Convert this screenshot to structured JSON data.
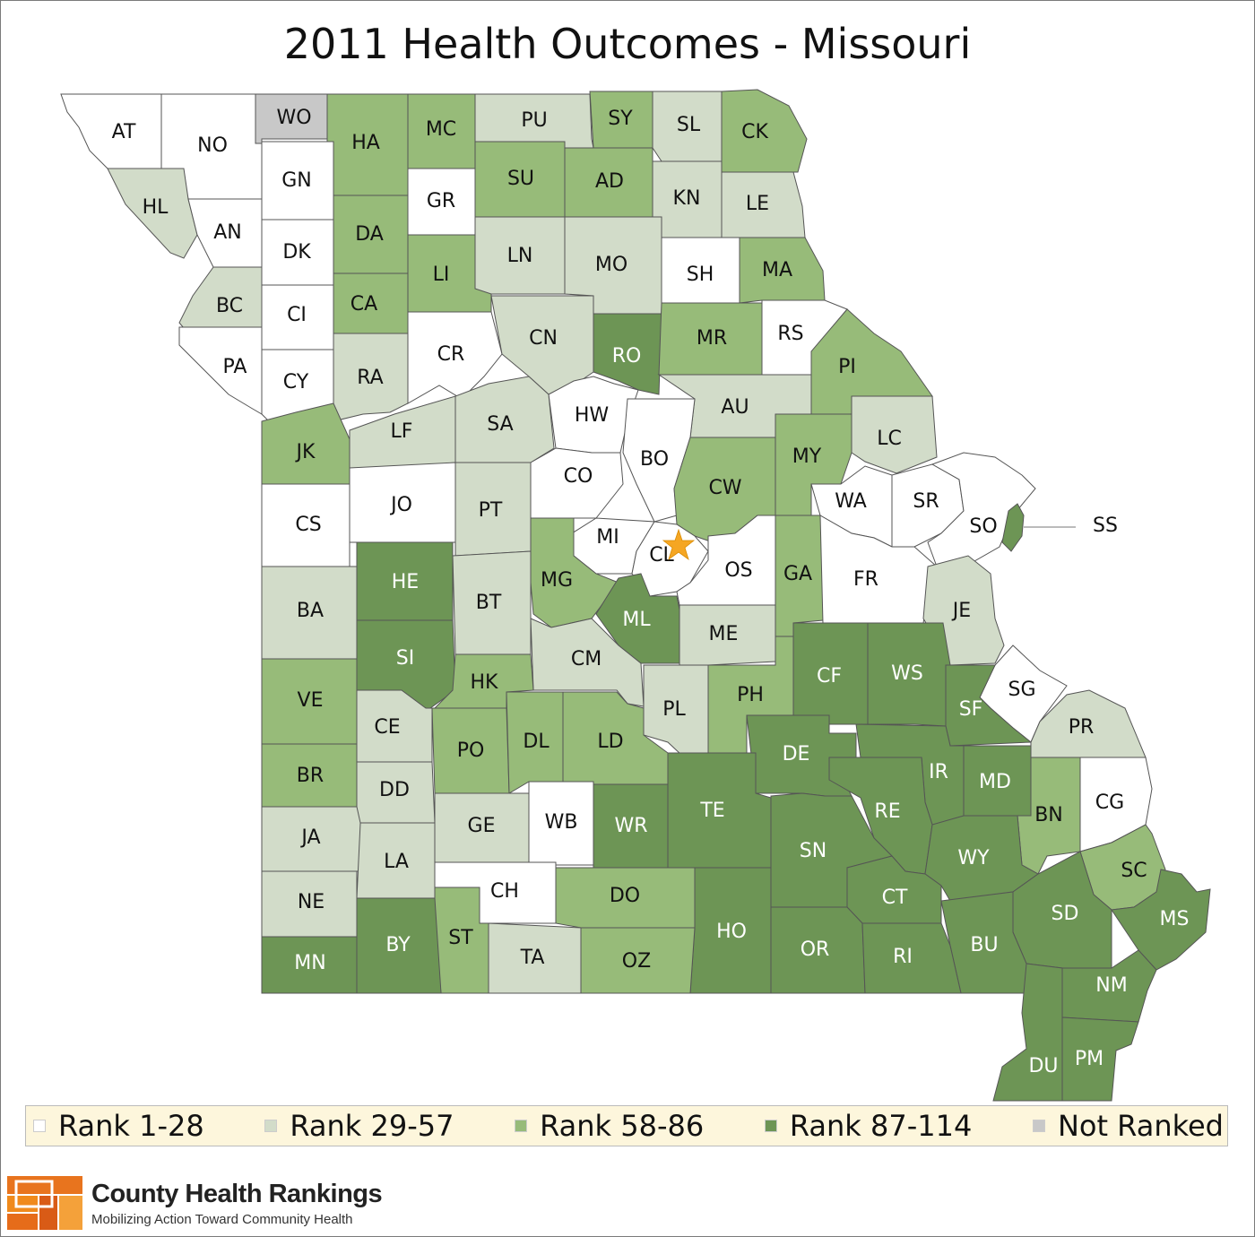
{
  "title": "2011 Health Outcomes - Missouri",
  "colors": {
    "rank1": "#ffffff",
    "rank2": "#d2dcc9",
    "rank3": "#97bb79",
    "rank4": "#6d9555",
    "notranked": "#c8c8c8",
    "star": "#f5a623"
  },
  "legend": [
    {
      "label": "Rank 1-28",
      "color": "#ffffff"
    },
    {
      "label": "Rank 29-57",
      "color": "#d2dcc9"
    },
    {
      "label": "Rank 58-86",
      "color": "#97bb79"
    },
    {
      "label": "Rank 87-114",
      "color": "#6d9555"
    },
    {
      "label": "Not Ranked",
      "color": "#c8c8c8"
    }
  ],
  "counties": [
    {
      "id": "AT",
      "cls": 1
    },
    {
      "id": "NO",
      "cls": 1
    },
    {
      "id": "WO",
      "cls": 0
    },
    {
      "id": "HA",
      "cls": 3
    },
    {
      "id": "MC",
      "cls": 3
    },
    {
      "id": "PU",
      "cls": 2
    },
    {
      "id": "SY",
      "cls": 3
    },
    {
      "id": "SL",
      "cls": 2
    },
    {
      "id": "CK",
      "cls": 3
    },
    {
      "id": "HL",
      "cls": 2
    },
    {
      "id": "AN",
      "cls": 1
    },
    {
      "id": "GN",
      "cls": 1
    },
    {
      "id": "GR",
      "cls": 1
    },
    {
      "id": "SU",
      "cls": 3
    },
    {
      "id": "AD",
      "cls": 3
    },
    {
      "id": "KN",
      "cls": 2
    },
    {
      "id": "LE",
      "cls": 2
    },
    {
      "id": "DA",
      "cls": 3
    },
    {
      "id": "DK",
      "cls": 1
    },
    {
      "id": "LI",
      "cls": 3
    },
    {
      "id": "LN",
      "cls": 2
    },
    {
      "id": "MO",
      "cls": 2
    },
    {
      "id": "SH",
      "cls": 1
    },
    {
      "id": "MA",
      "cls": 3
    },
    {
      "id": "BC",
      "cls": 2
    },
    {
      "id": "CI",
      "cls": 1
    },
    {
      "id": "CA",
      "cls": 3
    },
    {
      "id": "CR",
      "cls": 1
    },
    {
      "id": "CN",
      "cls": 2
    },
    {
      "id": "RO",
      "cls": 4
    },
    {
      "id": "MR",
      "cls": 3
    },
    {
      "id": "RS",
      "cls": 1
    },
    {
      "id": "PA",
      "cls": 1
    },
    {
      "id": "CY",
      "cls": 1
    },
    {
      "id": "RA",
      "cls": 2
    },
    {
      "id": "PI",
      "cls": 3
    },
    {
      "id": "HW",
      "cls": 1
    },
    {
      "id": "AU",
      "cls": 2
    },
    {
      "id": "JK",
      "cls": 3
    },
    {
      "id": "LF",
      "cls": 2
    },
    {
      "id": "SA",
      "cls": 2
    },
    {
      "id": "BO",
      "cls": 1
    },
    {
      "id": "LC",
      "cls": 2
    },
    {
      "id": "MY",
      "cls": 3
    },
    {
      "id": "CO",
      "cls": 1
    },
    {
      "id": "CW",
      "cls": 3
    },
    {
      "id": "JO",
      "cls": 1
    },
    {
      "id": "PT",
      "cls": 2
    },
    {
      "id": "WA",
      "cls": 1
    },
    {
      "id": "SR",
      "cls": 1
    },
    {
      "id": "CS",
      "cls": 1
    },
    {
      "id": "SO",
      "cls": 1
    },
    {
      "id": "SS",
      "cls": 4
    },
    {
      "id": "MI",
      "cls": 1
    },
    {
      "id": "CL",
      "cls": 1
    },
    {
      "id": "OS",
      "cls": 1
    },
    {
      "id": "HE",
      "cls": 4
    },
    {
      "id": "MG",
      "cls": 3
    },
    {
      "id": "GA",
      "cls": 3
    },
    {
      "id": "FR",
      "cls": 1
    },
    {
      "id": "BA",
      "cls": 2
    },
    {
      "id": "BT",
      "cls": 2
    },
    {
      "id": "ML",
      "cls": 4
    },
    {
      "id": "JE",
      "cls": 2
    },
    {
      "id": "ME",
      "cls": 2
    },
    {
      "id": "SI",
      "cls": 4
    },
    {
      "id": "CM",
      "cls": 2
    },
    {
      "id": "CF",
      "cls": 4
    },
    {
      "id": "WS",
      "cls": 4
    },
    {
      "id": "VE",
      "cls": 3
    },
    {
      "id": "HK",
      "cls": 3
    },
    {
      "id": "SG",
      "cls": 1
    },
    {
      "id": "PH",
      "cls": 3
    },
    {
      "id": "PL",
      "cls": 2
    },
    {
      "id": "SF",
      "cls": 4
    },
    {
      "id": "CE",
      "cls": 2
    },
    {
      "id": "PR",
      "cls": 2
    },
    {
      "id": "PO",
      "cls": 3
    },
    {
      "id": "DL",
      "cls": 3
    },
    {
      "id": "LD",
      "cls": 3
    },
    {
      "id": "DE",
      "cls": 4
    },
    {
      "id": "BR",
      "cls": 3
    },
    {
      "id": "IR",
      "cls": 4
    },
    {
      "id": "MD",
      "cls": 4
    },
    {
      "id": "DD",
      "cls": 2
    },
    {
      "id": "TE",
      "cls": 4
    },
    {
      "id": "BN",
      "cls": 3
    },
    {
      "id": "CG",
      "cls": 1
    },
    {
      "id": "RE",
      "cls": 4
    },
    {
      "id": "WB",
      "cls": 1
    },
    {
      "id": "WR",
      "cls": 4
    },
    {
      "id": "GE",
      "cls": 2
    },
    {
      "id": "JA",
      "cls": 2
    },
    {
      "id": "SN",
      "cls": 4
    },
    {
      "id": "LA",
      "cls": 2
    },
    {
      "id": "WY",
      "cls": 4
    },
    {
      "id": "SC",
      "cls": 3
    },
    {
      "id": "CH",
      "cls": 1
    },
    {
      "id": "DO",
      "cls": 3
    },
    {
      "id": "CT",
      "cls": 4
    },
    {
      "id": "NE",
      "cls": 2
    },
    {
      "id": "SD",
      "cls": 4
    },
    {
      "id": "MS",
      "cls": 4
    },
    {
      "id": "HO",
      "cls": 4
    },
    {
      "id": "ST",
      "cls": 3
    },
    {
      "id": "BY",
      "cls": 4
    },
    {
      "id": "OR",
      "cls": 4
    },
    {
      "id": "BU",
      "cls": 4
    },
    {
      "id": "RI",
      "cls": 4
    },
    {
      "id": "MN",
      "cls": 4
    },
    {
      "id": "TA",
      "cls": 2
    },
    {
      "id": "OZ",
      "cls": 3
    },
    {
      "id": "NM",
      "cls": 4
    },
    {
      "id": "DU",
      "cls": 4
    },
    {
      "id": "PM",
      "cls": 4
    }
  ],
  "brand": {
    "name": "County Health Rankings",
    "tagline": "Mobilizing Action Toward Community Health"
  }
}
